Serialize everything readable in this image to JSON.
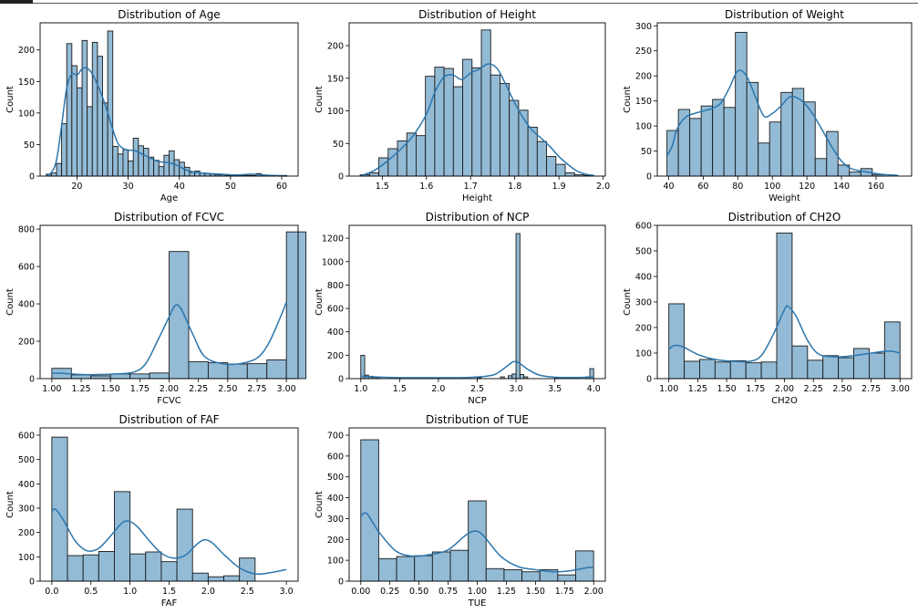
{
  "chart_data": [
    {
      "type": "histogram",
      "title": "Distribution of Age",
      "xlabel": "Age",
      "ylabel": "Count",
      "xlim": [
        12.8,
        63.2
      ],
      "ylim": [
        0,
        243
      ],
      "xticks": [
        20,
        30,
        40,
        50,
        60
      ],
      "yticks": [
        0,
        50,
        100,
        150,
        200
      ],
      "bin_width": 1.0,
      "bars": [
        {
          "x0": 14,
          "h": 3
        },
        {
          "x0": 15,
          "h": 5
        },
        {
          "x0": 16,
          "h": 20
        },
        {
          "x0": 17,
          "h": 83
        },
        {
          "x0": 18,
          "h": 210
        },
        {
          "x0": 19,
          "h": 175
        },
        {
          "x0": 20,
          "h": 140
        },
        {
          "x0": 21,
          "h": 215
        },
        {
          "x0": 22,
          "h": 110
        },
        {
          "x0": 23,
          "h": 212
        },
        {
          "x0": 24,
          "h": 190
        },
        {
          "x0": 25,
          "h": 116
        },
        {
          "x0": 26,
          "h": 230
        },
        {
          "x0": 27,
          "h": 47
        },
        {
          "x0": 28,
          "h": 35
        },
        {
          "x0": 29,
          "h": 42
        },
        {
          "x0": 30,
          "h": 24
        },
        {
          "x0": 31,
          "h": 60
        },
        {
          "x0": 32,
          "h": 48
        },
        {
          "x0": 33,
          "h": 44
        },
        {
          "x0": 34,
          "h": 30
        },
        {
          "x0": 35,
          "h": 25
        },
        {
          "x0": 36,
          "h": 15
        },
        {
          "x0": 37,
          "h": 33
        },
        {
          "x0": 38,
          "h": 40
        },
        {
          "x0": 39,
          "h": 26
        },
        {
          "x0": 40,
          "h": 22
        },
        {
          "x0": 41,
          "h": 14
        },
        {
          "x0": 42,
          "h": 6
        },
        {
          "x0": 43,
          "h": 8
        },
        {
          "x0": 44,
          "h": 5
        },
        {
          "x0": 45,
          "h": 4
        },
        {
          "x0": 46,
          "h": 3
        },
        {
          "x0": 47,
          "h": 2
        },
        {
          "x0": 48,
          "h": 2
        },
        {
          "x0": 49,
          "h": 1
        },
        {
          "x0": 50,
          "h": 1
        },
        {
          "x0": 51,
          "h": 1
        },
        {
          "x0": 52,
          "h": 1
        },
        {
          "x0": 53,
          "h": 1
        },
        {
          "x0": 54,
          "h": 1
        },
        {
          "x0": 55,
          "h": 4
        },
        {
          "x0": 56,
          "h": 1
        },
        {
          "x0": 57,
          "h": 1
        },
        {
          "x0": 58,
          "h": 1
        },
        {
          "x0": 59,
          "h": 1
        },
        {
          "x0": 60,
          "h": 1
        }
      ],
      "kde": [
        [
          14,
          0
        ],
        [
          15,
          6
        ],
        [
          16,
          25
        ],
        [
          17,
          80
        ],
        [
          18,
          140
        ],
        [
          19,
          162
        ],
        [
          20,
          160
        ],
        [
          21,
          170
        ],
        [
          22,
          171
        ],
        [
          23,
          162
        ],
        [
          24,
          145
        ],
        [
          25,
          125
        ],
        [
          26,
          100
        ],
        [
          27,
          74
        ],
        [
          28,
          52
        ],
        [
          29,
          44
        ],
        [
          30,
          41
        ],
        [
          31,
          41
        ],
        [
          32,
          38
        ],
        [
          33,
          34
        ],
        [
          34,
          30
        ],
        [
          35,
          26
        ],
        [
          36,
          23
        ],
        [
          37,
          22
        ],
        [
          38,
          21
        ],
        [
          39,
          19
        ],
        [
          40,
          15
        ],
        [
          41,
          11
        ],
        [
          42,
          8
        ],
        [
          44,
          5
        ],
        [
          46,
          4
        ],
        [
          48,
          3
        ],
        [
          50,
          2
        ],
        [
          52,
          2
        ],
        [
          54,
          3
        ],
        [
          56,
          2
        ],
        [
          58,
          1
        ],
        [
          61,
          0
        ]
      ]
    },
    {
      "type": "histogram",
      "title": "Distribution of Height",
      "xlabel": "Height",
      "ylabel": "Count",
      "xlim": [
        1.425,
        2.005
      ],
      "ylim": [
        0,
        235
      ],
      "xticks": [
        1.5,
        1.6,
        1.7,
        1.8,
        1.9,
        2.0
      ],
      "xtick_labels": [
        "1.5",
        "1.6",
        "1.7",
        "1.8",
        "1.9",
        "2.0"
      ],
      "yticks": [
        0,
        50,
        100,
        150,
        200
      ],
      "bin_width": 0.0211,
      "bars_start": 1.45,
      "heights": [
        2,
        5,
        28,
        42,
        54,
        66,
        62,
        153,
        167,
        165,
        137,
        179,
        166,
        224,
        155,
        142,
        116,
        101,
        75,
        53,
        30,
        18,
        5,
        2,
        1
      ],
      "kde": [
        [
          1.45,
          0
        ],
        [
          1.48,
          8
        ],
        [
          1.51,
          22
        ],
        [
          1.54,
          40
        ],
        [
          1.57,
          62
        ],
        [
          1.6,
          95
        ],
        [
          1.62,
          130
        ],
        [
          1.64,
          152
        ],
        [
          1.66,
          155
        ],
        [
          1.68,
          148
        ],
        [
          1.7,
          158
        ],
        [
          1.72,
          164
        ],
        [
          1.74,
          172
        ],
        [
          1.76,
          165
        ],
        [
          1.78,
          140
        ],
        [
          1.8,
          112
        ],
        [
          1.82,
          88
        ],
        [
          1.84,
          70
        ],
        [
          1.86,
          58
        ],
        [
          1.88,
          45
        ],
        [
          1.9,
          30
        ],
        [
          1.92,
          18
        ],
        [
          1.94,
          8
        ],
        [
          1.96,
          3
        ],
        [
          1.98,
          1
        ]
      ]
    },
    {
      "type": "histogram",
      "title": "Distribution of Weight",
      "xlabel": "Weight",
      "ylabel": "Count",
      "xlim": [
        33.4,
        180.6
      ],
      "ylim": [
        0,
        306
      ],
      "xticks": [
        40,
        60,
        80,
        100,
        120,
        140,
        160
      ],
      "yticks": [
        0,
        50,
        100,
        150,
        200,
        250,
        300
      ],
      "bin_width": 6.6,
      "bars_start": 39,
      "heights": [
        91,
        133,
        115,
        140,
        153,
        137,
        287,
        187,
        66,
        108,
        167,
        175,
        148,
        35,
        89,
        22,
        8,
        15,
        3,
        0
      ],
      "kde": [
        [
          39,
          40
        ],
        [
          42,
          60
        ],
        [
          45,
          95
        ],
        [
          50,
          118
        ],
        [
          55,
          125
        ],
        [
          60,
          130
        ],
        [
          65,
          135
        ],
        [
          70,
          145
        ],
        [
          75,
          175
        ],
        [
          80,
          210
        ],
        [
          85,
          200
        ],
        [
          90,
          160
        ],
        [
          95,
          120
        ],
        [
          100,
          125
        ],
        [
          105,
          140
        ],
        [
          110,
          158
        ],
        [
          115,
          155
        ],
        [
          120,
          140
        ],
        [
          125,
          115
        ],
        [
          130,
          85
        ],
        [
          135,
          55
        ],
        [
          140,
          30
        ],
        [
          145,
          16
        ],
        [
          150,
          11
        ],
        [
          155,
          8
        ],
        [
          160,
          5
        ],
        [
          165,
          3
        ],
        [
          170,
          2
        ],
        [
          173,
          1
        ]
      ]
    },
    {
      "type": "histogram",
      "title": "Distribution of FCVC",
      "xlabel": "FCVC",
      "ylabel": "Count",
      "xlim": [
        0.9,
        3.1
      ],
      "ylim": [
        0,
        820
      ],
      "xticks": [
        1.0,
        1.25,
        1.5,
        1.75,
        2.0,
        2.25,
        2.5,
        2.75,
        3.0
      ],
      "xtick_labels": [
        "1.00",
        "1.25",
        "1.50",
        "1.75",
        "2.00",
        "2.25",
        "2.50",
        "2.75",
        "3.00"
      ],
      "yticks": [
        0,
        200,
        400,
        600,
        800
      ],
      "bin_width": 0.1667,
      "bars_start": 1.0,
      "heights": [
        55,
        20,
        15,
        25,
        25,
        30,
        680,
        90,
        85,
        78,
        80,
        100,
        785
      ],
      "kde": [
        [
          1.0,
          30
        ],
        [
          1.1,
          28
        ],
        [
          1.25,
          22
        ],
        [
          1.4,
          22
        ],
        [
          1.55,
          25
        ],
        [
          1.7,
          35
        ],
        [
          1.8,
          80
        ],
        [
          1.9,
          200
        ],
        [
          2.0,
          330
        ],
        [
          2.05,
          390
        ],
        [
          2.1,
          375
        ],
        [
          2.2,
          240
        ],
        [
          2.3,
          120
        ],
        [
          2.45,
          80
        ],
        [
          2.6,
          80
        ],
        [
          2.75,
          110
        ],
        [
          2.85,
          190
        ],
        [
          2.95,
          330
        ],
        [
          3.0,
          410
        ]
      ]
    },
    {
      "type": "histogram",
      "title": "Distribution of NCP",
      "xlabel": "NCP",
      "ylabel": "Count",
      "xlim": [
        0.85,
        4.15
      ],
      "ylim": [
        0,
        1310
      ],
      "xticks": [
        1.0,
        1.5,
        2.0,
        2.5,
        3.0,
        3.5,
        4.0
      ],
      "xtick_labels": [
        "1.0",
        "1.5",
        "2.0",
        "2.5",
        "3.0",
        "3.5",
        "4.0"
      ],
      "yticks": [
        0,
        200,
        400,
        600,
        800,
        1000,
        1200
      ],
      "bin_width": 0.05,
      "bars": [
        {
          "x0": 1.0,
          "h": 199
        },
        {
          "x0": 1.05,
          "h": 30
        },
        {
          "x0": 1.1,
          "h": 20
        },
        {
          "x0": 1.15,
          "h": 12
        },
        {
          "x0": 1.2,
          "h": 10
        },
        {
          "x0": 1.5,
          "h": 6
        },
        {
          "x0": 2.0,
          "h": 8
        },
        {
          "x0": 2.5,
          "h": 8
        },
        {
          "x0": 2.8,
          "h": 15
        },
        {
          "x0": 2.9,
          "h": 25
        },
        {
          "x0": 2.95,
          "h": 40
        },
        {
          "x0": 3.0,
          "h": 1240
        },
        {
          "x0": 3.05,
          "h": 35
        },
        {
          "x0": 3.1,
          "h": 15
        },
        {
          "x0": 3.5,
          "h": 8
        },
        {
          "x0": 3.9,
          "h": 15
        },
        {
          "x0": 3.95,
          "h": 85
        }
      ],
      "kde": [
        [
          1.0,
          20
        ],
        [
          1.1,
          18
        ],
        [
          1.3,
          12
        ],
        [
          1.6,
          8
        ],
        [
          2.0,
          8
        ],
        [
          2.4,
          10
        ],
        [
          2.7,
          30
        ],
        [
          2.85,
          90
        ],
        [
          2.95,
          140
        ],
        [
          3.0,
          145
        ],
        [
          3.05,
          130
        ],
        [
          3.15,
          80
        ],
        [
          3.3,
          30
        ],
        [
          3.5,
          12
        ],
        [
          3.8,
          10
        ],
        [
          4.0,
          15
        ]
      ]
    },
    {
      "type": "histogram",
      "title": "Distribution of CH2O",
      "xlabel": "CH2O",
      "ylabel": "Count",
      "xlim": [
        0.9,
        3.1
      ],
      "ylim": [
        0,
        600
      ],
      "xticks": [
        1.0,
        1.25,
        1.5,
        1.75,
        2.0,
        2.25,
        2.5,
        2.75,
        3.0
      ],
      "xtick_labels": [
        "1.00",
        "1.25",
        "1.50",
        "1.75",
        "2.00",
        "2.25",
        "2.50",
        "2.75",
        "3.00"
      ],
      "yticks": [
        0,
        100,
        200,
        300,
        400,
        500,
        600
      ],
      "bin_width": 0.1333,
      "bars_start": 1.0,
      "heights": [
        293,
        68,
        75,
        65,
        70,
        62,
        65,
        570,
        128,
        72,
        90,
        82,
        118,
        100,
        222
      ],
      "kde": [
        [
          1.0,
          115
        ],
        [
          1.05,
          130
        ],
        [
          1.12,
          125
        ],
        [
          1.25,
          95
        ],
        [
          1.4,
          75
        ],
        [
          1.55,
          68
        ],
        [
          1.7,
          68
        ],
        [
          1.8,
          90
        ],
        [
          1.9,
          170
        ],
        [
          2.0,
          270
        ],
        [
          2.03,
          283
        ],
        [
          2.1,
          245
        ],
        [
          2.2,
          150
        ],
        [
          2.3,
          95
        ],
        [
          2.45,
          85
        ],
        [
          2.6,
          90
        ],
        [
          2.75,
          100
        ],
        [
          2.9,
          108
        ],
        [
          3.0,
          100
        ]
      ]
    },
    {
      "type": "histogram",
      "title": "Distribution of FAF",
      "xlabel": "FAF",
      "ylabel": "Count",
      "xlim": [
        -0.15,
        3.15
      ],
      "ylim": [
        0,
        630
      ],
      "xticks": [
        0.0,
        0.5,
        1.0,
        1.5,
        2.0,
        2.5,
        3.0
      ],
      "xtick_labels": [
        "0.0",
        "0.5",
        "1.0",
        "1.5",
        "2.0",
        "2.5",
        "3.0"
      ],
      "yticks": [
        0,
        100,
        200,
        300,
        400,
        500,
        600
      ],
      "bin_width": 0.2,
      "bars_start": 0.0,
      "heights": [
        592,
        105,
        108,
        122,
        368,
        112,
        120,
        80,
        296,
        33,
        18,
        22,
        95
      ],
      "kde": [
        [
          0.0,
          288
        ],
        [
          0.05,
          295
        ],
        [
          0.15,
          250
        ],
        [
          0.3,
          165
        ],
        [
          0.45,
          125
        ],
        [
          0.6,
          135
        ],
        [
          0.75,
          185
        ],
        [
          0.9,
          240
        ],
        [
          1.0,
          245
        ],
        [
          1.1,
          222
        ],
        [
          1.25,
          165
        ],
        [
          1.4,
          115
        ],
        [
          1.55,
          95
        ],
        [
          1.7,
          105
        ],
        [
          1.85,
          150
        ],
        [
          1.95,
          170
        ],
        [
          2.05,
          158
        ],
        [
          2.2,
          110
        ],
        [
          2.4,
          55
        ],
        [
          2.6,
          30
        ],
        [
          2.8,
          35
        ],
        [
          3.0,
          48
        ]
      ]
    },
    {
      "type": "histogram",
      "title": "Distribution of TUE",
      "xlabel": "TUE",
      "ylabel": "Count",
      "xlim": [
        -0.1,
        2.1
      ],
      "ylim": [
        0,
        735
      ],
      "xticks": [
        0.0,
        0.25,
        0.5,
        0.75,
        1.0,
        1.25,
        1.5,
        1.75,
        2.0
      ],
      "xtick_labels": [
        "0.00",
        "0.25",
        "0.50",
        "0.75",
        "1.00",
        "1.25",
        "1.50",
        "1.75",
        "2.00"
      ],
      "yticks": [
        0,
        100,
        200,
        300,
        400,
        500,
        600,
        700
      ],
      "bin_width": 0.1538,
      "bars_start": 0.0,
      "heights": [
        678,
        108,
        118,
        122,
        140,
        148,
        385,
        60,
        55,
        45,
        55,
        30,
        145
      ],
      "kde": [
        [
          0.0,
          310
        ],
        [
          0.05,
          325
        ],
        [
          0.15,
          240
        ],
        [
          0.3,
          145
        ],
        [
          0.45,
          120
        ],
        [
          0.6,
          128
        ],
        [
          0.75,
          150
        ],
        [
          0.9,
          220
        ],
        [
          0.98,
          240
        ],
        [
          1.05,
          220
        ],
        [
          1.2,
          120
        ],
        [
          1.35,
          70
        ],
        [
          1.5,
          55
        ],
        [
          1.65,
          45
        ],
        [
          1.8,
          50
        ],
        [
          1.95,
          65
        ],
        [
          2.0,
          65
        ]
      ]
    }
  ],
  "colors": {
    "bar_fill": "#93bbd6",
    "bar_edge": "#1a1a1a",
    "kde_line": "#2c76ad"
  }
}
